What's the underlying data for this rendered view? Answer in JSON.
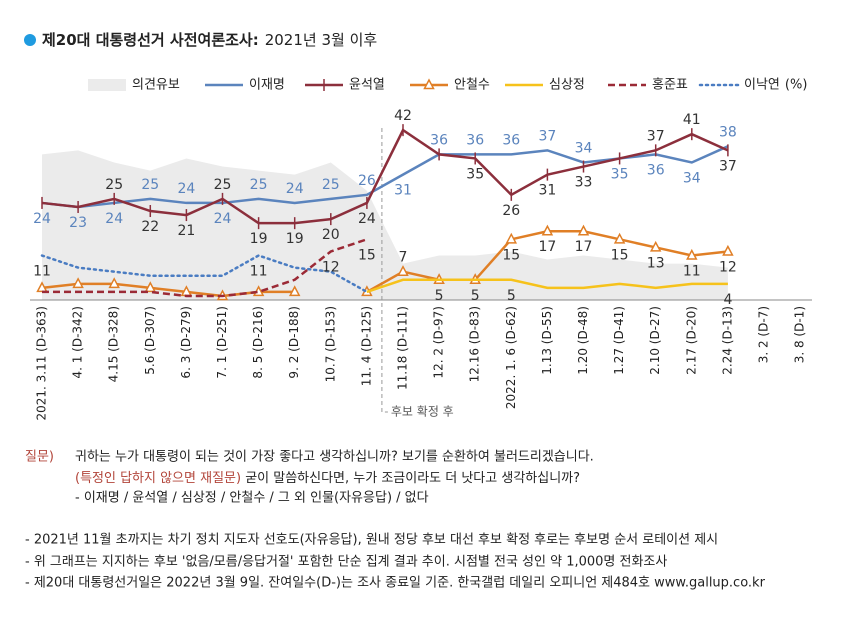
{
  "chart_data": {
    "type": "line",
    "title": "제20대 대통령선거 사전여론조사:",
    "subtitle": "2021년 3월 이후",
    "unit": "(%)",
    "categories": [
      "2021. 3.11 (D-363)",
      "4. 1 (D-342)",
      "4.15 (D-328)",
      "5.6 (D-307)",
      "6. 3 (D-279)",
      "7. 1 (D-251)",
      "8. 5 (D-216)",
      "9. 2 (D-188)",
      "10.7 (D-153)",
      "11. 4 (D-125)",
      "11.18 (D-111)",
      "12. 2 (D-97)",
      "12.16 (D-83)",
      "2022. 1. 6 (D-62)",
      "1.13 (D-55)",
      "1.20 (D-48)",
      "1.27 (D-41)",
      "2.10 (D-27)",
      "2.17 (D-20)",
      "2.24 (D-13)",
      "3. 2 (D-7)",
      "3. 8 (D-1)"
    ],
    "ylim": [
      0,
      45
    ],
    "annotation": "후보 확정 후",
    "series": [
      {
        "name": "의견유보",
        "color": "#ebebeb",
        "style": "area",
        "values": [
          36,
          37,
          34,
          32,
          35,
          33,
          32,
          31,
          34,
          27,
          9,
          11,
          11,
          12,
          10,
          11,
          10,
          9,
          9,
          8,
          null,
          null
        ],
        "label_points": []
      },
      {
        "name": "이재명",
        "color": "#5b84bd",
        "style": "solid",
        "values": [
          24,
          23,
          24,
          25,
          24,
          24,
          25,
          24,
          25,
          26,
          31,
          36,
          36,
          36,
          37,
          34,
          35,
          36,
          34,
          38,
          null,
          null
        ],
        "label_points": [
          0,
          1,
          2,
          3,
          4,
          5,
          6,
          7,
          8,
          9,
          10,
          11,
          12,
          13,
          14,
          15,
          16,
          17,
          18,
          19
        ]
      },
      {
        "name": "윤석열",
        "color": "#8c2f3c",
        "style": "solid",
        "marker": "tick",
        "values": [
          24,
          23,
          25,
          22,
          21,
          25,
          19,
          19,
          20,
          24,
          42,
          36,
          35,
          26,
          31,
          33,
          35,
          37,
          41,
          37,
          null,
          null
        ],
        "label_points": [
          2,
          3,
          4,
          5,
          6,
          7,
          8,
          9,
          10,
          12,
          13,
          14,
          15,
          17,
          18,
          19
        ]
      },
      {
        "name": "안철수",
        "color": "#e07f26",
        "style": "solid",
        "marker": "triangle",
        "values": [
          3,
          4,
          4,
          3,
          2,
          1,
          2,
          2,
          null,
          2,
          7,
          5,
          5,
          15,
          17,
          17,
          15,
          13,
          11,
          12,
          null,
          null
        ],
        "label_points": [
          10,
          11,
          12,
          13,
          14,
          15,
          16,
          17,
          18,
          19
        ]
      },
      {
        "name": "심상정",
        "color": "#f6c21b",
        "style": "solid",
        "values": [
          null,
          null,
          null,
          null,
          null,
          null,
          null,
          null,
          null,
          2,
          5,
          5,
          5,
          5,
          3,
          3,
          4,
          3,
          4,
          4,
          null,
          null
        ],
        "label_points": [
          13,
          19
        ]
      },
      {
        "name": "홍준표",
        "color": "#9b2a36",
        "style": "dashed",
        "values": [
          2,
          2,
          2,
          2,
          1,
          1,
          2,
          5,
          12,
          15,
          null,
          null,
          null,
          null,
          null,
          null,
          null,
          null,
          null,
          null,
          null,
          null
        ],
        "label_points": [
          8,
          9
        ]
      },
      {
        "name": "이낙연",
        "color": "#4a7cc2",
        "style": "dotted",
        "values": [
          11,
          8,
          7,
          6,
          6,
          6,
          11,
          8,
          7,
          2,
          null,
          null,
          null,
          null,
          null,
          null,
          null,
          null,
          null,
          null,
          null,
          null
        ],
        "label_points": [
          0,
          6
        ]
      }
    ]
  },
  "question": {
    "label": "질문)",
    "line1": "귀하는 누가 대통령이 되는 것이 가장 좋다고 생각하십니까? 보기를 순환하여 불러드리겠습니다.",
    "line2_note": "(특정인 답하지 않으면 재질문)",
    "line2": " 굳이 말씀하신다면, 누가 조금이라도 더 낫다고 생각하십니까?",
    "line3": "- 이재명 / 윤석열 / 심상정 / 안철수 / 그 외 인물(자유응답) / 없다"
  },
  "footnotes": [
    "- 2021년 11월 초까지는 차기 정치 지도자 선호도(자유응답), 원내 정당 후보 대선 후보 확정 후로는 후보명 순서 로테이션 제시",
    "- 위 그래프는 지지하는 후보 '없음/모름/응답거절' 포함한 단순 집계 결과 추이. 시점별 전국 성인 약 1,000명 전화조사",
    "- 제20대 대통령선거일은 2022년 3월 9일. 잔여일수(D-)는 조사 종료일 기준. 한국갤럽 데일리 오피니언 제484호 www.gallup.co.kr"
  ]
}
